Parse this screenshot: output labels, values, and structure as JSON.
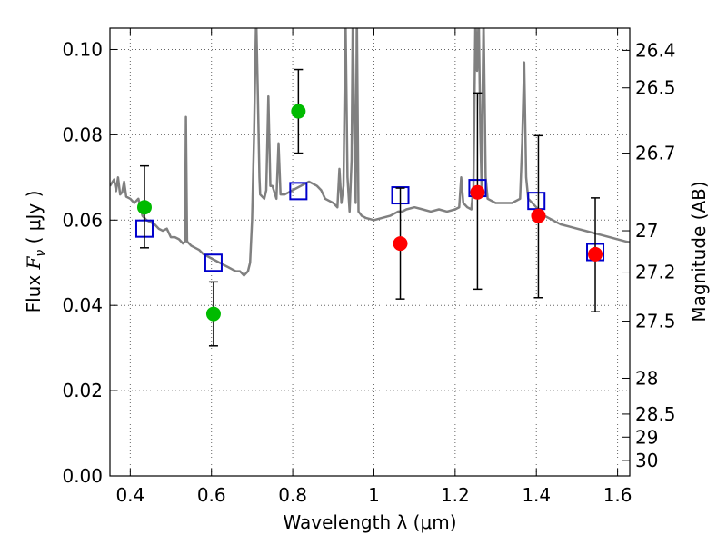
{
  "chart_data": {
    "type": "scatter",
    "xlabel": "Wavelength  λ (μm)",
    "ylabel": "Flux  F_ν  ( μJy )",
    "ylabel_parts": {
      "prefix": "Flux  ",
      "symbol": "F",
      "subscript": "ν",
      "suffix": "  ( μJy )"
    },
    "right_ylabel": "Magnitude (AB)",
    "xlim": [
      0.35,
      1.63
    ],
    "ylim": [
      0.0,
      0.105
    ],
    "grid": true,
    "x_ticks": [
      0.4,
      0.6,
      0.8,
      1.0,
      1.2,
      1.4,
      1.6
    ],
    "x_tick_labels": [
      "0.4",
      "0.6",
      "0.8",
      "1",
      "1.2",
      "1.4",
      "1.6"
    ],
    "y_ticks": [
      0.0,
      0.02,
      0.04,
      0.06,
      0.08,
      0.1
    ],
    "y_tick_labels": [
      "0.00",
      "0.02",
      "0.04",
      "0.06",
      "0.08",
      "0.10"
    ],
    "right_ticks": [
      {
        "mag": 26.4,
        "flux": 0.0998,
        "label": "26.4"
      },
      {
        "mag": 26.5,
        "flux": 0.091,
        "label": "26.5"
      },
      {
        "mag": 26.7,
        "flux": 0.0757,
        "label": "26.7"
      },
      {
        "mag": 27.0,
        "flux": 0.0575,
        "label": "27"
      },
      {
        "mag": 27.2,
        "flux": 0.0478,
        "label": "27.2"
      },
      {
        "mag": 27.5,
        "flux": 0.0363,
        "label": "27.5"
      },
      {
        "mag": 28.0,
        "flux": 0.0229,
        "label": "28"
      },
      {
        "mag": 28.5,
        "flux": 0.0145,
        "label": "28.5"
      },
      {
        "mag": 29.0,
        "flux": 0.0091,
        "label": "29"
      },
      {
        "mag": 30.0,
        "flux": 0.0036,
        "label": "30"
      }
    ],
    "series": [
      {
        "name": "model_spectrum",
        "kind": "line",
        "color": "#808080",
        "points": [
          [
            0.35,
            0.068
          ],
          [
            0.36,
            0.0695
          ],
          [
            0.365,
            0.0668
          ],
          [
            0.37,
            0.07
          ],
          [
            0.375,
            0.066
          ],
          [
            0.38,
            0.0665
          ],
          [
            0.385,
            0.069
          ],
          [
            0.39,
            0.0655
          ],
          [
            0.4,
            0.065
          ],
          [
            0.41,
            0.064
          ],
          [
            0.42,
            0.065
          ],
          [
            0.43,
            0.061
          ],
          [
            0.44,
            0.06
          ],
          [
            0.45,
            0.0595
          ],
          [
            0.46,
            0.059
          ],
          [
            0.47,
            0.058
          ],
          [
            0.48,
            0.0575
          ],
          [
            0.49,
            0.058
          ],
          [
            0.5,
            0.056
          ],
          [
            0.51,
            0.056
          ],
          [
            0.52,
            0.0555
          ],
          [
            0.53,
            0.0545
          ],
          [
            0.535,
            0.055
          ],
          [
            0.537,
            0.0842
          ],
          [
            0.54,
            0.055
          ],
          [
            0.55,
            0.054
          ],
          [
            0.56,
            0.0535
          ],
          [
            0.57,
            0.053
          ],
          [
            0.58,
            0.052
          ],
          [
            0.59,
            0.0515
          ],
          [
            0.6,
            0.051
          ],
          [
            0.61,
            0.0505
          ],
          [
            0.62,
            0.05
          ],
          [
            0.63,
            0.0495
          ],
          [
            0.64,
            0.049
          ],
          [
            0.65,
            0.0485
          ],
          [
            0.66,
            0.048
          ],
          [
            0.67,
            0.048
          ],
          [
            0.68,
            0.047
          ],
          [
            0.69,
            0.048
          ],
          [
            0.695,
            0.05
          ],
          [
            0.7,
            0.06
          ],
          [
            0.705,
            0.08
          ],
          [
            0.71,
            0.108
          ],
          [
            0.714,
            0.09
          ],
          [
            0.718,
            0.07
          ],
          [
            0.72,
            0.066
          ],
          [
            0.73,
            0.065
          ],
          [
            0.735,
            0.067
          ],
          [
            0.74,
            0.089
          ],
          [
            0.745,
            0.068
          ],
          [
            0.75,
            0.068
          ],
          [
            0.76,
            0.065
          ],
          [
            0.765,
            0.078
          ],
          [
            0.77,
            0.066
          ],
          [
            0.78,
            0.066
          ],
          [
            0.79,
            0.0665
          ],
          [
            0.8,
            0.067
          ],
          [
            0.82,
            0.068
          ],
          [
            0.84,
            0.069
          ],
          [
            0.86,
            0.068
          ],
          [
            0.87,
            0.067
          ],
          [
            0.88,
            0.065
          ],
          [
            0.9,
            0.064
          ],
          [
            0.91,
            0.063
          ],
          [
            0.915,
            0.072
          ],
          [
            0.92,
            0.064
          ],
          [
            0.925,
            0.068
          ],
          [
            0.93,
            0.108
          ],
          [
            0.935,
            0.07
          ],
          [
            0.94,
            0.062
          ],
          [
            0.945,
            0.074
          ],
          [
            0.948,
            0.108
          ],
          [
            0.952,
            0.08
          ],
          [
            0.955,
            0.064
          ],
          [
            0.958,
            0.108
          ],
          [
            0.962,
            0.062
          ],
          [
            0.97,
            0.061
          ],
          [
            0.98,
            0.0605
          ],
          [
            1.0,
            0.06
          ],
          [
            1.02,
            0.0605
          ],
          [
            1.04,
            0.061
          ],
          [
            1.05,
            0.0615
          ],
          [
            1.06,
            0.062
          ],
          [
            1.07,
            0.062
          ],
          [
            1.08,
            0.0625
          ],
          [
            1.1,
            0.063
          ],
          [
            1.12,
            0.0625
          ],
          [
            1.14,
            0.062
          ],
          [
            1.16,
            0.0625
          ],
          [
            1.18,
            0.062
          ],
          [
            1.2,
            0.0625
          ],
          [
            1.21,
            0.063
          ],
          [
            1.215,
            0.07
          ],
          [
            1.22,
            0.064
          ],
          [
            1.23,
            0.063
          ],
          [
            1.24,
            0.0625
          ],
          [
            1.245,
            0.068
          ],
          [
            1.25,
            0.108
          ],
          [
            1.254,
            0.095
          ],
          [
            1.258,
            0.108
          ],
          [
            1.262,
            0.08
          ],
          [
            1.265,
            0.068
          ],
          [
            1.27,
            0.108
          ],
          [
            1.275,
            0.07
          ],
          [
            1.28,
            0.065
          ],
          [
            1.3,
            0.064
          ],
          [
            1.32,
            0.064
          ],
          [
            1.34,
            0.064
          ],
          [
            1.36,
            0.065
          ],
          [
            1.365,
            0.078
          ],
          [
            1.37,
            0.097
          ],
          [
            1.375,
            0.07
          ],
          [
            1.38,
            0.065
          ],
          [
            1.4,
            0.063
          ],
          [
            1.42,
            0.061
          ],
          [
            1.44,
            0.06
          ],
          [
            1.46,
            0.059
          ],
          [
            1.48,
            0.0585
          ],
          [
            1.5,
            0.058
          ],
          [
            1.52,
            0.0575
          ],
          [
            1.54,
            0.057
          ],
          [
            1.56,
            0.0565
          ],
          [
            1.58,
            0.056
          ],
          [
            1.6,
            0.0555
          ],
          [
            1.62,
            0.055
          ],
          [
            1.63,
            0.0548
          ]
        ]
      },
      {
        "name": "model_photometry",
        "kind": "open-square",
        "color": "#0000cc",
        "points": [
          [
            0.435,
            0.058
          ],
          [
            0.605,
            0.05
          ],
          [
            0.814,
            0.0668
          ],
          [
            1.065,
            0.0658
          ],
          [
            1.255,
            0.0675
          ],
          [
            1.4,
            0.0645
          ],
          [
            1.545,
            0.0525
          ]
        ]
      },
      {
        "name": "observed_optical",
        "kind": "filled-circle",
        "color": "#00bb00",
        "points": [
          {
            "x": 0.435,
            "y": 0.063,
            "err_low": 0.0535,
            "err_high": 0.0727
          },
          {
            "x": 0.605,
            "y": 0.038,
            "err_low": 0.0305,
            "err_high": 0.0455
          },
          {
            "x": 0.814,
            "y": 0.0855,
            "err_low": 0.0757,
            "err_high": 0.0953
          }
        ]
      },
      {
        "name": "observed_nir",
        "kind": "filled-circle",
        "color": "#ff0000",
        "points": [
          {
            "x": 1.065,
            "y": 0.0545,
            "err_low": 0.0415,
            "err_high": 0.0675
          },
          {
            "x": 1.255,
            "y": 0.0665,
            "err_low": 0.0438,
            "err_high": 0.0898
          },
          {
            "x": 1.405,
            "y": 0.061,
            "err_low": 0.0418,
            "err_high": 0.0798
          },
          {
            "x": 1.545,
            "y": 0.052,
            "err_low": 0.0385,
            "err_high": 0.0652
          }
        ]
      }
    ]
  }
}
